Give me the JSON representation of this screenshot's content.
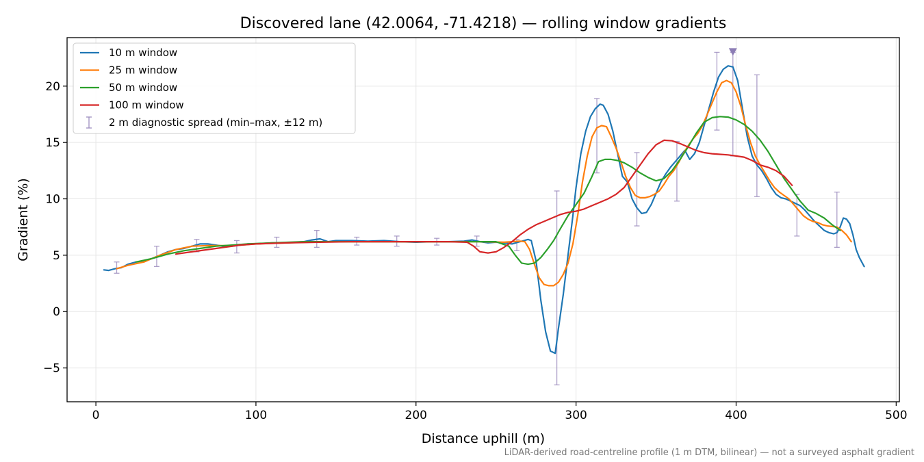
{
  "chart_data": {
    "type": "line",
    "title": "Discovered lane (42.0064, -71.4218) — rolling window gradients",
    "xlabel": "Distance uphill (m)",
    "ylabel": "Gradient (%)",
    "xlim": [
      -18,
      502
    ],
    "ylim": [
      -8,
      24.3
    ],
    "xticks": [
      0,
      100,
      200,
      300,
      400,
      500
    ],
    "yticks": [
      -5,
      0,
      5,
      10,
      15,
      20
    ],
    "xtick_labels": [
      "0",
      "100",
      "200",
      "300",
      "400",
      "500"
    ],
    "ytick_labels": [
      "−5",
      "0",
      "5",
      "10",
      "15",
      "20"
    ],
    "grid": true,
    "legend_position": "top-left",
    "footnote": "LiDAR-derived road-centreline profile (1 m DTM, bilinear) — not a surveyed asphalt gradient",
    "series": [
      {
        "name": "10 m window",
        "color": "#1f77b4",
        "x": [
          5,
          8,
          12,
          16,
          20,
          25,
          30,
          35,
          40,
          45,
          50,
          55,
          60,
          65,
          70,
          75,
          80,
          85,
          90,
          95,
          100,
          105,
          110,
          115,
          120,
          125,
          130,
          135,
          140,
          145,
          150,
          160,
          170,
          180,
          190,
          200,
          210,
          220,
          230,
          235,
          240,
          245,
          250,
          255,
          260,
          265,
          270,
          272,
          275,
          278,
          281,
          284,
          287,
          289,
          292,
          295,
          298,
          300,
          303,
          306,
          309,
          312,
          315,
          317,
          320,
          323,
          326,
          329,
          332,
          335,
          338,
          341,
          344,
          347,
          350,
          353,
          356,
          359,
          362,
          365,
          368,
          371,
          374,
          377,
          380,
          383,
          386,
          389,
          392,
          395,
          398,
          401,
          404,
          407,
          410,
          413,
          416,
          419,
          422,
          425,
          428,
          431,
          434,
          437,
          440,
          443,
          446,
          449,
          452,
          455,
          458,
          461,
          463,
          465,
          467,
          469,
          471,
          473,
          475,
          477,
          480
        ],
        "y": [
          3.7,
          3.65,
          3.8,
          3.9,
          4.2,
          4.4,
          4.5,
          4.7,
          5.0,
          5.3,
          5.5,
          5.6,
          5.8,
          6.0,
          6.0,
          5.9,
          5.8,
          5.8,
          5.9,
          6.0,
          6.0,
          6.05,
          6.1,
          6.1,
          6.1,
          6.15,
          6.2,
          6.35,
          6.45,
          6.2,
          6.3,
          6.3,
          6.25,
          6.3,
          6.2,
          6.15,
          6.2,
          6.2,
          6.25,
          6.35,
          6.2,
          6.1,
          6.15,
          6.1,
          6.0,
          6.2,
          6.4,
          6.3,
          4.5,
          1.0,
          -1.8,
          -3.5,
          -3.7,
          -1.5,
          1.5,
          5.0,
          8.5,
          11.0,
          14.0,
          16.0,
          17.3,
          18.0,
          18.4,
          18.3,
          17.5,
          16.0,
          14.0,
          12.0,
          11.5,
          10.0,
          9.2,
          8.7,
          8.8,
          9.5,
          10.5,
          11.5,
          12.2,
          12.8,
          13.3,
          13.8,
          14.3,
          13.5,
          14.0,
          15.0,
          16.5,
          18.0,
          19.5,
          20.8,
          21.5,
          21.8,
          21.7,
          20.5,
          18.0,
          15.5,
          13.8,
          13.0,
          12.5,
          11.8,
          11.0,
          10.4,
          10.1,
          10.0,
          9.8,
          9.6,
          9.4,
          9.0,
          8.5,
          8.0,
          7.6,
          7.2,
          7.0,
          6.9,
          7.0,
          7.5,
          8.3,
          8.2,
          7.8,
          6.8,
          5.5,
          4.8,
          4.0
        ]
      },
      {
        "name": "25 m window",
        "color": "#ff7f0e",
        "x": [
          13,
          20,
          30,
          40,
          50,
          60,
          70,
          80,
          90,
          100,
          120,
          140,
          160,
          180,
          200,
          220,
          240,
          255,
          260,
          265,
          268,
          271,
          274,
          277,
          280,
          283,
          286,
          289,
          292,
          295,
          298,
          301,
          304,
          307,
          310,
          313,
          316,
          319,
          322,
          325,
          328,
          331,
          334,
          337,
          340,
          343,
          346,
          349,
          352,
          355,
          358,
          361,
          364,
          367,
          370,
          373,
          376,
          379,
          382,
          385,
          388,
          391,
          394,
          397,
          400,
          403,
          406,
          409,
          412,
          415,
          418,
          421,
          424,
          427,
          430,
          433,
          436,
          439,
          442,
          445,
          448,
          451,
          454,
          457,
          460,
          463,
          466,
          469,
          472
        ],
        "y": [
          3.8,
          4.1,
          4.4,
          5.0,
          5.5,
          5.8,
          5.85,
          5.85,
          5.9,
          6.0,
          6.1,
          6.2,
          6.2,
          6.2,
          6.2,
          6.2,
          6.2,
          6.15,
          6.2,
          6.25,
          6.2,
          5.5,
          4.2,
          3.0,
          2.4,
          2.3,
          2.3,
          2.6,
          3.3,
          4.3,
          6.0,
          8.5,
          11.5,
          13.8,
          15.5,
          16.3,
          16.5,
          16.4,
          15.5,
          14.5,
          13.3,
          12.0,
          11.0,
          10.3,
          10.1,
          10.1,
          10.2,
          10.4,
          10.7,
          11.3,
          12.0,
          12.5,
          13.2,
          14.0,
          14.7,
          15.3,
          15.8,
          16.5,
          17.5,
          18.5,
          19.5,
          20.3,
          20.5,
          20.3,
          19.5,
          18.2,
          16.5,
          15.0,
          13.8,
          13.0,
          12.3,
          11.6,
          11.0,
          10.6,
          10.3,
          10.0,
          9.5,
          9.0,
          8.5,
          8.2,
          8.0,
          7.9,
          7.7,
          7.6,
          7.55,
          7.5,
          7.2,
          6.8,
          6.2
        ]
      },
      {
        "name": "50 m window",
        "color": "#2ca02c",
        "x": [
          25,
          35,
          45,
          55,
          65,
          75,
          85,
          95,
          110,
          130,
          150,
          170,
          190,
          210,
          230,
          250,
          258,
          262,
          266,
          270,
          274,
          278,
          282,
          286,
          290,
          295,
          300,
          305,
          310,
          314,
          318,
          322,
          326,
          330,
          335,
          340,
          345,
          350,
          355,
          360,
          365,
          370,
          375,
          380,
          385,
          390,
          395,
          400,
          405,
          410,
          415,
          420,
          425,
          430,
          435,
          440,
          445,
          450,
          455,
          460,
          465
        ],
        "y": [
          4.4,
          4.7,
          5.1,
          5.4,
          5.6,
          5.8,
          5.9,
          6.0,
          6.1,
          6.2,
          6.2,
          6.2,
          6.2,
          6.2,
          6.2,
          6.2,
          5.8,
          5.0,
          4.3,
          4.2,
          4.3,
          4.8,
          5.5,
          6.3,
          7.3,
          8.5,
          9.5,
          10.5,
          12.0,
          13.3,
          13.5,
          13.5,
          13.4,
          13.2,
          12.8,
          12.3,
          11.9,
          11.6,
          11.8,
          12.5,
          13.5,
          14.6,
          15.8,
          16.8,
          17.2,
          17.3,
          17.25,
          17.0,
          16.6,
          16.0,
          15.2,
          14.2,
          13.0,
          11.8,
          10.8,
          9.8,
          9.0,
          8.7,
          8.3,
          7.7,
          7.2
        ]
      },
      {
        "name": "100 m window",
        "color": "#d62728",
        "x": [
          50,
          60,
          70,
          80,
          90,
          100,
          120,
          140,
          160,
          180,
          200,
          220,
          232,
          236,
          240,
          245,
          250,
          255,
          260,
          265,
          270,
          275,
          280,
          285,
          290,
          295,
          300,
          305,
          310,
          315,
          320,
          325,
          330,
          335,
          340,
          345,
          350,
          355,
          360,
          365,
          370,
          375,
          380,
          385,
          390,
          395,
          400,
          405,
          410,
          415,
          420,
          425,
          430,
          435
        ],
        "y": [
          5.1,
          5.3,
          5.5,
          5.7,
          5.9,
          6.0,
          6.1,
          6.15,
          6.2,
          6.2,
          6.2,
          6.2,
          6.15,
          5.8,
          5.3,
          5.2,
          5.3,
          5.7,
          6.2,
          6.8,
          7.3,
          7.7,
          8.0,
          8.3,
          8.6,
          8.8,
          8.9,
          9.1,
          9.4,
          9.7,
          10.0,
          10.4,
          11.0,
          12.0,
          13.0,
          14.0,
          14.8,
          15.2,
          15.15,
          14.9,
          14.6,
          14.3,
          14.1,
          14.0,
          13.95,
          13.9,
          13.8,
          13.7,
          13.4,
          13.0,
          12.8,
          12.5,
          12.0,
          11.2
        ]
      }
    ],
    "error_bars": {
      "name": "2 m diagnostic spread (min–max, ±12 m)",
      "color": "#9e8fbf",
      "points": [
        {
          "x": 13,
          "low": 3.4,
          "high": 4.4
        },
        {
          "x": 38,
          "low": 4.0,
          "high": 5.8
        },
        {
          "x": 63,
          "low": 5.3,
          "high": 6.4
        },
        {
          "x": 88,
          "low": 5.2,
          "high": 6.3
        },
        {
          "x": 113,
          "low": 5.7,
          "high": 6.6
        },
        {
          "x": 138,
          "low": 5.7,
          "high": 7.2
        },
        {
          "x": 163,
          "low": 5.9,
          "high": 6.6
        },
        {
          "x": 188,
          "low": 5.8,
          "high": 6.7
        },
        {
          "x": 213,
          "low": 5.9,
          "high": 6.5
        },
        {
          "x": 238,
          "low": 5.8,
          "high": 6.7
        },
        {
          "x": 263,
          "low": 5.4,
          "high": 6.4
        },
        {
          "x": 288,
          "low": -6.5,
          "high": 10.7
        },
        {
          "x": 313,
          "low": 12.3,
          "high": 18.9
        },
        {
          "x": 338,
          "low": 7.6,
          "high": 14.1
        },
        {
          "x": 363,
          "low": 9.8,
          "high": 15.1
        },
        {
          "x": 388,
          "low": 16.1,
          "high": 23.0
        },
        {
          "x": 398,
          "low": 13.8,
          "high": 23.0
        },
        {
          "x": 413,
          "low": 10.2,
          "high": 21.0
        },
        {
          "x": 438,
          "low": 6.7,
          "high": 10.4
        },
        {
          "x": 463,
          "low": 5.7,
          "high": 10.6
        }
      ]
    },
    "marker": {
      "x": 398,
      "y": 23.0,
      "color": "#8c7db5",
      "shape": "triangle-down"
    }
  }
}
